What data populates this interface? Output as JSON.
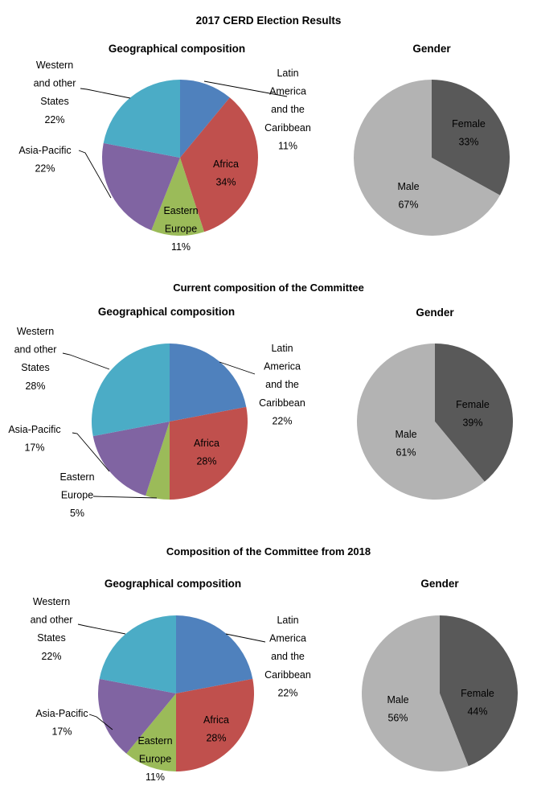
{
  "page_title": "2017 CERD Election Results",
  "sections": [
    {
      "title": ""
    },
    {
      "title": "Current composition of the Committee"
    },
    {
      "title": "Composition of the Committee from 2018"
    }
  ],
  "colors": {
    "Latin America and the Caribbean": "#4F81BD",
    "Africa": "#C0504D",
    "Eastern Europe": "#9BBB59",
    "Asia-Pacific": "#8064A2",
    "Western and other States": "#4BACC6",
    "Female": "#595959",
    "Male": "#B3B3B3"
  },
  "chart_data": [
    {
      "type": "pie",
      "title": "Geographical composition",
      "categories": [
        "Latin America and the Caribbean",
        "Africa",
        "Eastern Europe",
        "Asia-Pacific",
        "Western and other States"
      ],
      "values": [
        11,
        34,
        11,
        22,
        22
      ],
      "labels": [
        {
          "lines": [
            "Latin",
            "America",
            "and the",
            "Caribbean"
          ],
          "pct": "11%"
        },
        {
          "lines": [
            "Africa"
          ],
          "pct": "34%"
        },
        {
          "lines": [
            "Eastern",
            "Europe"
          ],
          "pct": "11%"
        },
        {
          "lines": [
            "Asia-Pacific"
          ],
          "pct": "22%"
        },
        {
          "lines": [
            "Western",
            "and other",
            "States"
          ],
          "pct": "22%"
        }
      ]
    },
    {
      "type": "pie",
      "title": "Gender",
      "categories": [
        "Female",
        "Male"
      ],
      "values": [
        33,
        67
      ],
      "labels": [
        {
          "lines": [
            "Female"
          ],
          "pct": "33%"
        },
        {
          "lines": [
            "Male"
          ],
          "pct": "67%"
        }
      ]
    },
    {
      "type": "pie",
      "title": "Geographical composition",
      "categories": [
        "Latin America and the Caribbean",
        "Africa",
        "Eastern Europe",
        "Asia-Pacific",
        "Western and other States"
      ],
      "values": [
        22,
        28,
        5,
        17,
        28
      ],
      "labels": [
        {
          "lines": [
            "Latin",
            "America",
            "and the",
            "Caribbean"
          ],
          "pct": "22%"
        },
        {
          "lines": [
            "Africa"
          ],
          "pct": "28%"
        },
        {
          "lines": [
            "Eastern",
            "Europe"
          ],
          "pct": "5%"
        },
        {
          "lines": [
            "Asia-Pacific"
          ],
          "pct": "17%"
        },
        {
          "lines": [
            "Western",
            "and other",
            "States"
          ],
          "pct": "28%"
        }
      ]
    },
    {
      "type": "pie",
      "title": "Gender",
      "categories": [
        "Female",
        "Male"
      ],
      "values": [
        39,
        61
      ],
      "labels": [
        {
          "lines": [
            "Female"
          ],
          "pct": "39%"
        },
        {
          "lines": [
            "Male"
          ],
          "pct": "61%"
        }
      ]
    },
    {
      "type": "pie",
      "title": "Geographical composition",
      "categories": [
        "Latin America and the Caribbean",
        "Africa",
        "Eastern Europe",
        "Asia-Pacific",
        "Western and other States"
      ],
      "values": [
        22,
        28,
        11,
        17,
        22
      ],
      "labels": [
        {
          "lines": [
            "Latin",
            "America",
            "and the",
            "Caribbean"
          ],
          "pct": "22%"
        },
        {
          "lines": [
            "Africa"
          ],
          "pct": "28%"
        },
        {
          "lines": [
            "Eastern",
            "Europe"
          ],
          "pct": "11%"
        },
        {
          "lines": [
            "Asia-Pacific"
          ],
          "pct": "17%"
        },
        {
          "lines": [
            "Western",
            "and other",
            "States"
          ],
          "pct": "22%"
        }
      ]
    },
    {
      "type": "pie",
      "title": "Gender",
      "categories": [
        "Female",
        "Male"
      ],
      "values": [
        44,
        56
      ],
      "labels": [
        {
          "lines": [
            "Female"
          ],
          "pct": "44%"
        },
        {
          "lines": [
            "Male"
          ],
          "pct": "56%"
        }
      ]
    }
  ]
}
